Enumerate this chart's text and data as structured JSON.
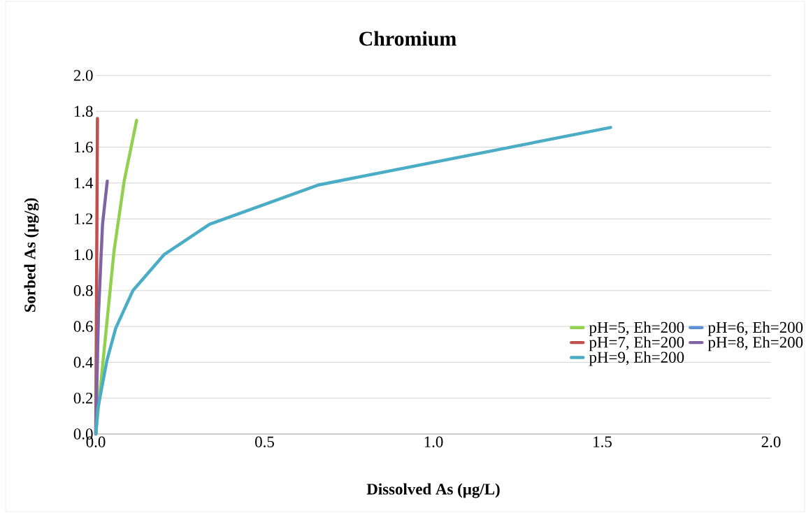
{
  "chart_data": {
    "type": "line",
    "title": "Chromium",
    "xlabel": "Dissolved As (µg/L)",
    "ylabel": "Sorbed As (µg/g)",
    "xlim": [
      0,
      2.0
    ],
    "xticks": [
      {
        "value": 0,
        "label": "0.0"
      },
      {
        "value": 0.5,
        "label": "0.5"
      },
      {
        "value": 1.0,
        "label": "1.0"
      },
      {
        "value": 1.5,
        "label": "1.5"
      },
      {
        "value": 2.0,
        "label": "2.0"
      }
    ],
    "ylim": [
      0,
      2.0
    ],
    "yticks": [
      {
        "value": 0,
        "label": "0.0"
      },
      {
        "value": 0.2,
        "label": "0.2"
      },
      {
        "value": 0.4,
        "label": "0.4"
      },
      {
        "value": 0.6,
        "label": "0.6"
      },
      {
        "value": 0.8,
        "label": "0.8"
      },
      {
        "value": 1.0,
        "label": "1.0"
      },
      {
        "value": 1.2,
        "label": "1.2"
      },
      {
        "value": 1.4,
        "label": "1.4"
      },
      {
        "value": 1.6,
        "label": "1.6"
      },
      {
        "value": 1.8,
        "label": "1.8"
      },
      {
        "value": 2.0,
        "label": "2.0"
      }
    ],
    "grid": "y",
    "legend": "bottom right",
    "marker": "none",
    "line_style": "solid",
    "series": [
      {
        "name": "pH=5, Eh=200",
        "color": "#92d050",
        "x": [
          0,
          0.054,
          0.084,
          0.121
        ],
        "values": [
          0,
          1.02,
          1.41,
          1.75
        ]
      },
      {
        "name": "pH=6, Eh=200",
        "color": "#5b8fd6"
      },
      {
        "name": "pH=7, Eh=200",
        "color": "#c0504d",
        "x": [
          0,
          0.005
        ],
        "values": [
          0,
          1.76
        ]
      },
      {
        "name": "pH=8, Eh=200",
        "color": "#8064a2",
        "x": [
          0,
          0.008,
          0.02,
          0.034
        ],
        "values": [
          0,
          0.67,
          1.17,
          1.41
        ]
      },
      {
        "name": "pH=9, Eh=200",
        "color": "#4bacc6",
        "x": [
          0,
          0.006,
          0.033,
          0.059,
          0.11,
          0.202,
          0.337,
          0.661,
          1.525
        ],
        "values": [
          0,
          0.14,
          0.41,
          0.59,
          0.8,
          1.0,
          1.17,
          1.39,
          1.71
        ]
      }
    ]
  }
}
